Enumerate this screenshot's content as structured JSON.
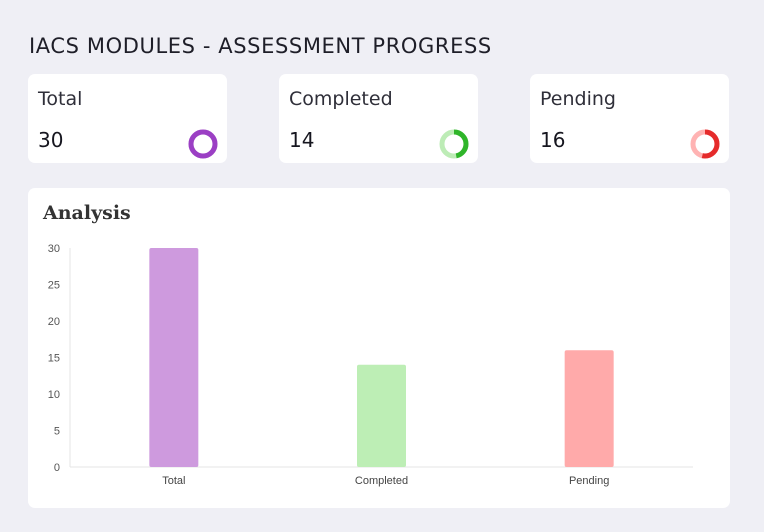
{
  "page": {
    "title": "IACS MODULES - ASSESSMENT PROGRESS"
  },
  "cards": [
    {
      "label": "Total",
      "value": "30",
      "ring_fraction": 1.0,
      "ring_color": "#9b3fc4",
      "ring_track": "#d8bde6",
      "icon": "donut-icon"
    },
    {
      "label": "Completed",
      "value": "14",
      "ring_fraction": 0.4667,
      "ring_color": "#2fb52a",
      "ring_track": "#bdecb6",
      "icon": "donut-icon"
    },
    {
      "label": "Pending",
      "value": "16",
      "ring_fraction": 0.5333,
      "ring_color": "#e52b2b",
      "ring_track": "#ffb3b3",
      "icon": "donut-icon"
    }
  ],
  "analysis": {
    "title": "Analysis"
  },
  "chart_data": {
    "type": "bar",
    "categories": [
      "Total",
      "Completed",
      "Pending"
    ],
    "values": [
      30,
      14,
      16
    ],
    "colors": [
      "#ce9ade",
      "#bdeeb5",
      "#ffaaaa"
    ],
    "ylim": [
      0,
      30
    ],
    "yticks": [
      0,
      5,
      10,
      15,
      20,
      25,
      30
    ],
    "grid": false,
    "legend": "none"
  }
}
